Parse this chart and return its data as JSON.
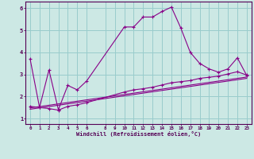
{
  "title": "",
  "xlabel": "Windchill (Refroidissement éolien,°C)",
  "bg_color": "#cce8e4",
  "line_color": "#880088",
  "grid_color": "#99cccc",
  "ylim": [
    0.75,
    6.3
  ],
  "xlim": [
    -0.5,
    23.5
  ],
  "xticks": [
    0,
    1,
    2,
    3,
    4,
    5,
    6,
    8,
    9,
    10,
    11,
    12,
    13,
    14,
    15,
    16,
    17,
    18,
    19,
    20,
    21,
    22,
    23
  ],
  "yticks": [
    1,
    2,
    3,
    4,
    5,
    6
  ],
  "main_x": [
    0,
    1,
    2,
    3,
    4,
    5,
    6,
    10,
    11,
    12,
    13,
    14,
    15,
    16,
    17,
    18,
    19,
    20,
    21,
    22,
    23
  ],
  "main_y": [
    3.7,
    1.5,
    3.2,
    1.4,
    2.5,
    2.3,
    2.7,
    5.15,
    5.15,
    5.6,
    5.6,
    5.85,
    6.05,
    5.1,
    4.0,
    3.5,
    3.25,
    3.1,
    3.25,
    3.75,
    2.95
  ],
  "line2_x": [
    0,
    1,
    2,
    3,
    4,
    5,
    6,
    10,
    11,
    12,
    13,
    14,
    15,
    16,
    17,
    18,
    19,
    20,
    21,
    22,
    23
  ],
  "line2_y": [
    1.55,
    1.5,
    1.45,
    1.38,
    1.55,
    1.62,
    1.72,
    2.2,
    2.3,
    2.35,
    2.42,
    2.52,
    2.62,
    2.67,
    2.72,
    2.82,
    2.87,
    2.92,
    3.02,
    3.12,
    2.97
  ],
  "line3_x": [
    0,
    23
  ],
  "line3_y": [
    1.48,
    2.88
  ],
  "line4_x": [
    0,
    23
  ],
  "line4_y": [
    1.42,
    2.82
  ]
}
